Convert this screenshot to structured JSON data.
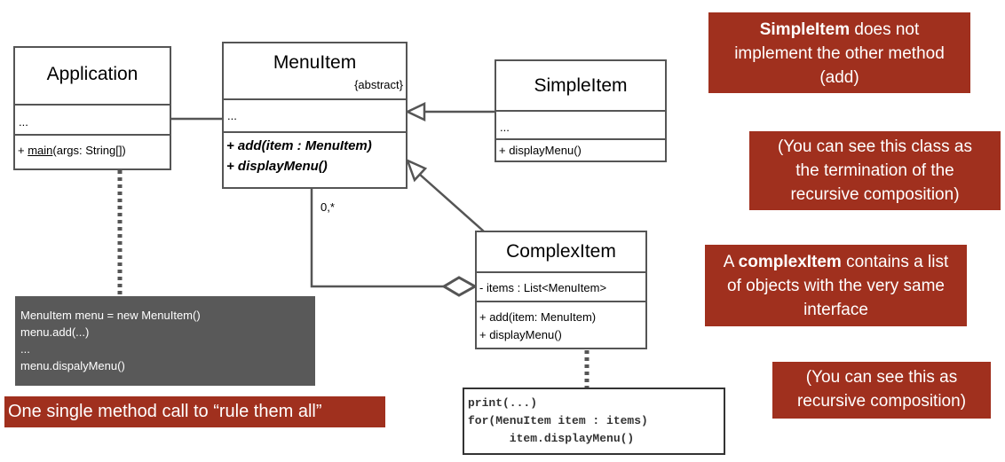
{
  "application": {
    "name": "Application",
    "attrs": "...",
    "method_prefix": "+ ",
    "method_name": "main",
    "method_rest": "(args: String[])"
  },
  "menu_item": {
    "name": "MenuItem",
    "stereotype": "{abstract}",
    "attrs": "...",
    "methods": [
      "+ add(item : MenuItem)",
      "+ displayMenu()"
    ]
  },
  "simple_item": {
    "name": "SimpleItem",
    "attrs": "...",
    "methods": [
      "+ displayMenu()"
    ]
  },
  "complex_item": {
    "name": "ComplexItem",
    "attrs": "- items : List<MenuItem>",
    "methods": [
      "+ add(item: MenuItem)",
      "+ displayMenu()"
    ]
  },
  "multiplicity": "0,*",
  "client_code": {
    "lines": [
      "MenuItem menu = new MenuItem()",
      "menu.add(...)",
      "...",
      "menu.dispalyMenu()"
    ]
  },
  "complex_code": {
    "lines": [
      "print(...)",
      "for(MenuItem item : items)",
      "      item.displayMenu()"
    ]
  },
  "notes": {
    "simple_bold": "SimpleItem",
    "simple_rest": " does not implement the other method (add)",
    "termination": "(You can see this class as the termination of the recursive composition)",
    "complex_prefix": "A ",
    "complex_bold": "complexItem",
    "complex_rest": " contains a list  of objects with the very same interface",
    "recursive": "(You can see this as recursive composition)",
    "rule": "One single method call to “rule them all”"
  },
  "colors": {
    "note_bg": "#a0301e",
    "code_bg": "#595959",
    "line": "#555555"
  }
}
